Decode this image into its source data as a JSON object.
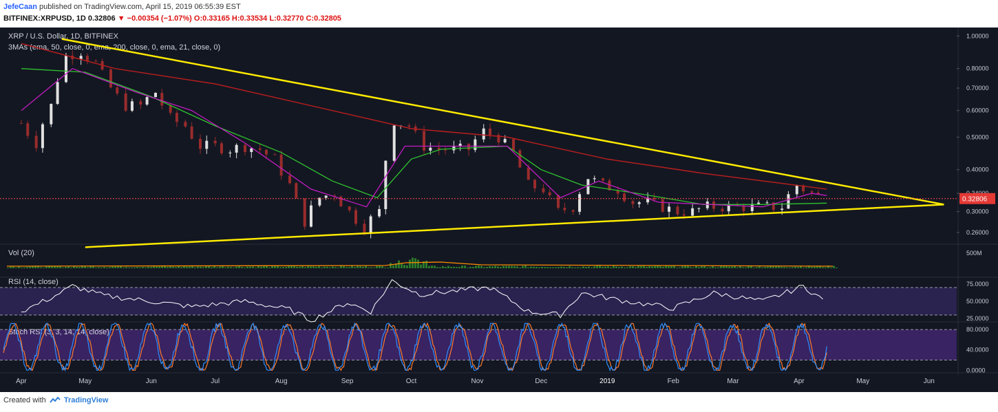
{
  "header": {
    "author": "JefeCaan",
    "published": "published on TradingView.com, April 15, 2019 06:55:39 EST",
    "symbol": "BITFINEX:XRPUSD, 1D",
    "price": "0.32806",
    "change_arrow": "▼",
    "change": "−0.00354 (−1.07%)",
    "ohlc": "O:0.33165 H:0.33534 L:0.32770 C:0.32805"
  },
  "footer": {
    "created_with": "Created with",
    "brand": "TradingView"
  },
  "colors": {
    "background": "#131722",
    "candle_up": "#e0e0e0",
    "candle_down": "#9a2c2c",
    "ema50": "#2fc42f",
    "ema200": "#b51e1e",
    "ema21": "#c21cc2",
    "trendline": "#ffeb00",
    "rsi_line": "#ffffff",
    "rsi_band": "#3a2a6e",
    "stoch_k": "#2f8fff",
    "stoch_d": "#ff7a2a",
    "stoch_band": "#4a2a7e",
    "volume_ma": "#ff8c00",
    "volume_bar": "#2a7a2a",
    "price_line": "#ff4a4a"
  },
  "chart_data": [
    {
      "type": "line",
      "title": "XRP / U.S. Dollar, 1D, BITFINEX",
      "subtitle": "3MAs (ema, 50, close, 0, ema, 200, close, 0, ema, 21, close, 0)",
      "scale": "log",
      "ylim": [
        0.24,
        1.05
      ],
      "y_ticks": [
        "1.00000",
        "0.80000",
        "0.70000",
        "0.60000",
        "0.50000",
        "0.40000",
        "0.34000",
        "0.30000",
        "0.26000"
      ],
      "x_ticks": [
        "Apr",
        "May",
        "Jun",
        "Jul",
        "Aug",
        "Sep",
        "Oct",
        "Nov",
        "Dec",
        "2019",
        "Feb",
        "Mar",
        "Apr",
        "May",
        "Jun"
      ],
      "last_price_label": "0.32806",
      "price_series": [
        [
          "2018-04-01",
          0.55
        ],
        [
          "2018-04-08",
          0.48
        ],
        [
          "2018-04-15",
          0.62
        ],
        [
          "2018-04-22",
          0.87
        ],
        [
          "2018-04-29",
          0.9
        ],
        [
          "2018-05-06",
          0.83
        ],
        [
          "2018-05-13",
          0.7
        ],
        [
          "2018-05-20",
          0.62
        ],
        [
          "2018-05-27",
          0.62
        ],
        [
          "2018-06-03",
          0.68
        ],
        [
          "2018-06-10",
          0.57
        ],
        [
          "2018-06-17",
          0.54
        ],
        [
          "2018-06-24",
          0.47
        ],
        [
          "2018-07-01",
          0.47
        ],
        [
          "2018-07-08",
          0.46
        ],
        [
          "2018-07-15",
          0.47
        ],
        [
          "2018-07-22",
          0.46
        ],
        [
          "2018-07-29",
          0.43
        ],
        [
          "2018-08-05",
          0.36
        ],
        [
          "2018-08-12",
          0.28
        ],
        [
          "2018-08-19",
          0.33
        ],
        [
          "2018-08-26",
          0.34
        ],
        [
          "2018-09-02",
          0.3
        ],
        [
          "2018-09-09",
          0.27
        ],
        [
          "2018-09-16",
          0.3
        ],
        [
          "2018-09-23",
          0.56
        ],
        [
          "2018-09-30",
          0.54
        ],
        [
          "2018-10-07",
          0.47
        ],
        [
          "2018-10-14",
          0.46
        ],
        [
          "2018-10-21",
          0.46
        ],
        [
          "2018-10-28",
          0.46
        ],
        [
          "2018-11-04",
          0.52
        ],
        [
          "2018-11-11",
          0.5
        ],
        [
          "2018-11-18",
          0.45
        ],
        [
          "2018-11-25",
          0.36
        ],
        [
          "2018-12-02",
          0.35
        ],
        [
          "2018-12-09",
          0.3
        ],
        [
          "2018-12-16",
          0.31
        ],
        [
          "2018-12-23",
          0.38
        ],
        [
          "2018-12-30",
          0.36
        ],
        [
          "2019-01-06",
          0.35
        ],
        [
          "2019-01-13",
          0.32
        ],
        [
          "2019-01-20",
          0.32
        ],
        [
          "2019-01-27",
          0.31
        ],
        [
          "2019-02-03",
          0.3
        ],
        [
          "2019-02-10",
          0.3
        ],
        [
          "2019-02-17",
          0.31
        ],
        [
          "2019-02-24",
          0.31
        ],
        [
          "2019-03-03",
          0.31
        ],
        [
          "2019-03-10",
          0.31
        ],
        [
          "2019-03-17",
          0.31
        ],
        [
          "2019-03-24",
          0.31
        ],
        [
          "2019-03-31",
          0.36
        ],
        [
          "2019-04-07",
          0.34
        ],
        [
          "2019-04-14",
          0.328
        ]
      ],
      "ema50": [
        [
          "2018-04-01",
          0.8
        ],
        [
          "2018-05-01",
          0.78
        ],
        [
          "2018-06-01",
          0.66
        ],
        [
          "2018-07-01",
          0.54
        ],
        [
          "2018-08-01",
          0.45
        ],
        [
          "2018-08-25",
          0.37
        ],
        [
          "2018-09-15",
          0.33
        ],
        [
          "2018-10-01",
          0.43
        ],
        [
          "2018-10-15",
          0.46
        ],
        [
          "2018-11-15",
          0.47
        ],
        [
          "2018-12-01",
          0.4
        ],
        [
          "2018-12-20",
          0.36
        ],
        [
          "2019-01-15",
          0.34
        ],
        [
          "2019-02-15",
          0.315
        ],
        [
          "2019-03-15",
          0.315
        ],
        [
          "2019-04-14",
          0.318
        ]
      ],
      "ema200": [
        [
          "2018-04-01",
          0.95
        ],
        [
          "2018-05-15",
          0.8
        ],
        [
          "2018-07-01",
          0.72
        ],
        [
          "2018-08-15",
          0.62
        ],
        [
          "2018-10-01",
          0.53
        ],
        [
          "2018-11-15",
          0.5
        ],
        [
          "2019-01-01",
          0.43
        ],
        [
          "2019-02-15",
          0.39
        ],
        [
          "2019-04-14",
          0.35
        ]
      ],
      "ema21": [
        [
          "2018-04-01",
          0.6
        ],
        [
          "2018-04-25",
          0.8
        ],
        [
          "2018-05-25",
          0.68
        ],
        [
          "2018-06-20",
          0.6
        ],
        [
          "2018-07-15",
          0.48
        ],
        [
          "2018-08-15",
          0.35
        ],
        [
          "2018-09-10",
          0.31
        ],
        [
          "2018-09-28",
          0.47
        ],
        [
          "2018-10-20",
          0.47
        ],
        [
          "2018-11-15",
          0.47
        ],
        [
          "2018-12-10",
          0.33
        ],
        [
          "2018-12-28",
          0.37
        ],
        [
          "2019-01-25",
          0.32
        ],
        [
          "2019-03-15",
          0.31
        ],
        [
          "2019-04-07",
          0.34
        ],
        [
          "2019-04-14",
          0.335
        ]
      ],
      "trendlines": [
        {
          "from": [
            "2018-04-20",
            0.98
          ],
          "to": [
            "2019-06-08",
            0.315
          ]
        },
        {
          "from": [
            "2018-05-01",
            0.235
          ],
          "to": [
            "2019-06-08",
            0.315
          ]
        }
      ]
    },
    {
      "type": "bar",
      "title": "Vol (20)",
      "y_ticks": [
        "500M"
      ],
      "note": "low volume bars with orange moving average"
    },
    {
      "type": "line",
      "title": "RSI (14, close)",
      "ylim": [
        20,
        85
      ],
      "y_ticks": [
        "75.0000",
        "50.0000",
        "25.0000"
      ],
      "band": [
        30,
        70
      ],
      "series": [
        [
          "2018-04-01",
          35
        ],
        [
          "2018-04-15",
          55
        ],
        [
          "2018-04-25",
          72
        ],
        [
          "2018-05-10",
          58
        ],
        [
          "2018-06-01",
          50
        ],
        [
          "2018-06-20",
          42
        ],
        [
          "2018-07-15",
          50
        ],
        [
          "2018-08-05",
          38
        ],
        [
          "2018-08-15",
          22
        ],
        [
          "2018-09-01",
          48
        ],
        [
          "2018-09-12",
          35
        ],
        [
          "2018-09-22",
          80
        ],
        [
          "2018-10-05",
          60
        ],
        [
          "2018-11-07",
          70
        ],
        [
          "2018-11-25",
          35
        ],
        [
          "2018-12-10",
          30
        ],
        [
          "2018-12-20",
          62
        ],
        [
          "2019-01-10",
          50
        ],
        [
          "2019-02-01",
          40
        ],
        [
          "2019-02-20",
          62
        ],
        [
          "2019-03-15",
          50
        ],
        [
          "2019-04-03",
          72
        ],
        [
          "2019-04-14",
          48
        ]
      ]
    },
    {
      "type": "line",
      "title": "Stoch RSI (3, 3, 14, 14, close)",
      "ylim": [
        -5,
        95
      ],
      "y_ticks": [
        "80.0000",
        "40.0000",
        "0.0000"
      ],
      "band": [
        20,
        80
      ],
      "oscillation_points": 48
    }
  ]
}
